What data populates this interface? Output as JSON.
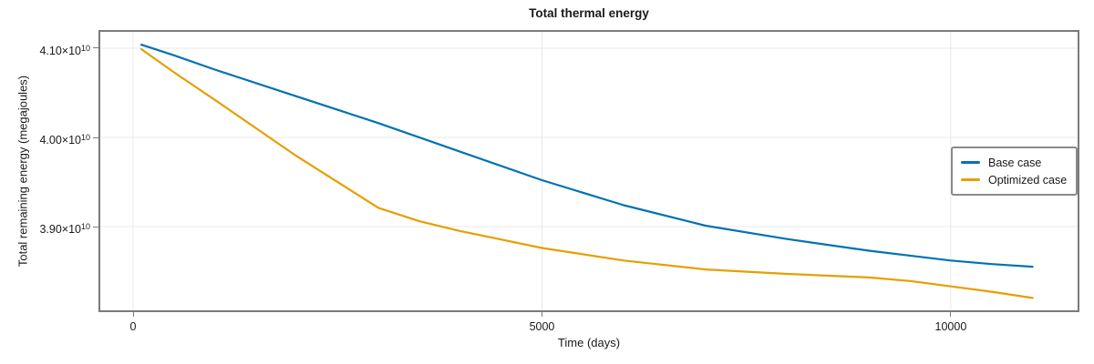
{
  "chart_data": {
    "type": "line",
    "title": "Total thermal energy",
    "xlabel": "Time (days)",
    "ylabel": "Total remaining energy (megajoules)",
    "xlim": [
      -424,
      11573
    ],
    "ylim": [
      38041000000.0,
      41204000000.0
    ],
    "grid": true,
    "legend_position": "right-inside",
    "xticks": [
      {
        "value": 0,
        "label": "0"
      },
      {
        "value": 5000,
        "label": "5000"
      },
      {
        "value": 10000,
        "label": "10000"
      }
    ],
    "yticks": [
      {
        "value": 41000000000.0,
        "label_base": "4.10×10",
        "label_sup": "10"
      },
      {
        "value": 40000000000.0,
        "label_base": "4.00×10",
        "label_sup": "10"
      },
      {
        "value": 39000000000.0,
        "label_base": "3.90×10",
        "label_sup": "10"
      }
    ],
    "series": [
      {
        "name": "Base case",
        "color": "#0072B2",
        "x": [
          100,
          500,
          1000,
          2000,
          3000,
          4000,
          5000,
          6000,
          7000,
          8000,
          9000,
          10000,
          10500,
          11000
        ],
        "y": [
          41040000000.0,
          40920000000.0,
          40760000000.0,
          40460000000.0,
          40160000000.0,
          39840000000.0,
          39520000000.0,
          39240000000.0,
          39010000000.0,
          38860000000.0,
          38730000000.0,
          38620000000.0,
          38580000000.0,
          38550000000.0
        ]
      },
      {
        "name": "Optimized case",
        "color": "#E69F00",
        "x": [
          100,
          500,
          1000,
          2000,
          3000,
          3500,
          4000,
          5000,
          6000,
          7000,
          8000,
          9000,
          9500,
          10000,
          10500,
          11000
        ],
        "y": [
          40990000000.0,
          40730000000.0,
          40420000000.0,
          39790000000.0,
          39210000000.0,
          39060000000.0,
          38950000000.0,
          38760000000.0,
          38620000000.0,
          38520000000.0,
          38470000000.0,
          38430000000.0,
          38390000000.0,
          38330000000.0,
          38270000000.0,
          38200000000.0
        ]
      }
    ],
    "style": {
      "grid_color": "#e8e8e8",
      "frame_color": "#7a7a7a",
      "tick_color": "#7a7a7a",
      "text_color": "#1a1a1a",
      "background": "#ffffff"
    }
  }
}
